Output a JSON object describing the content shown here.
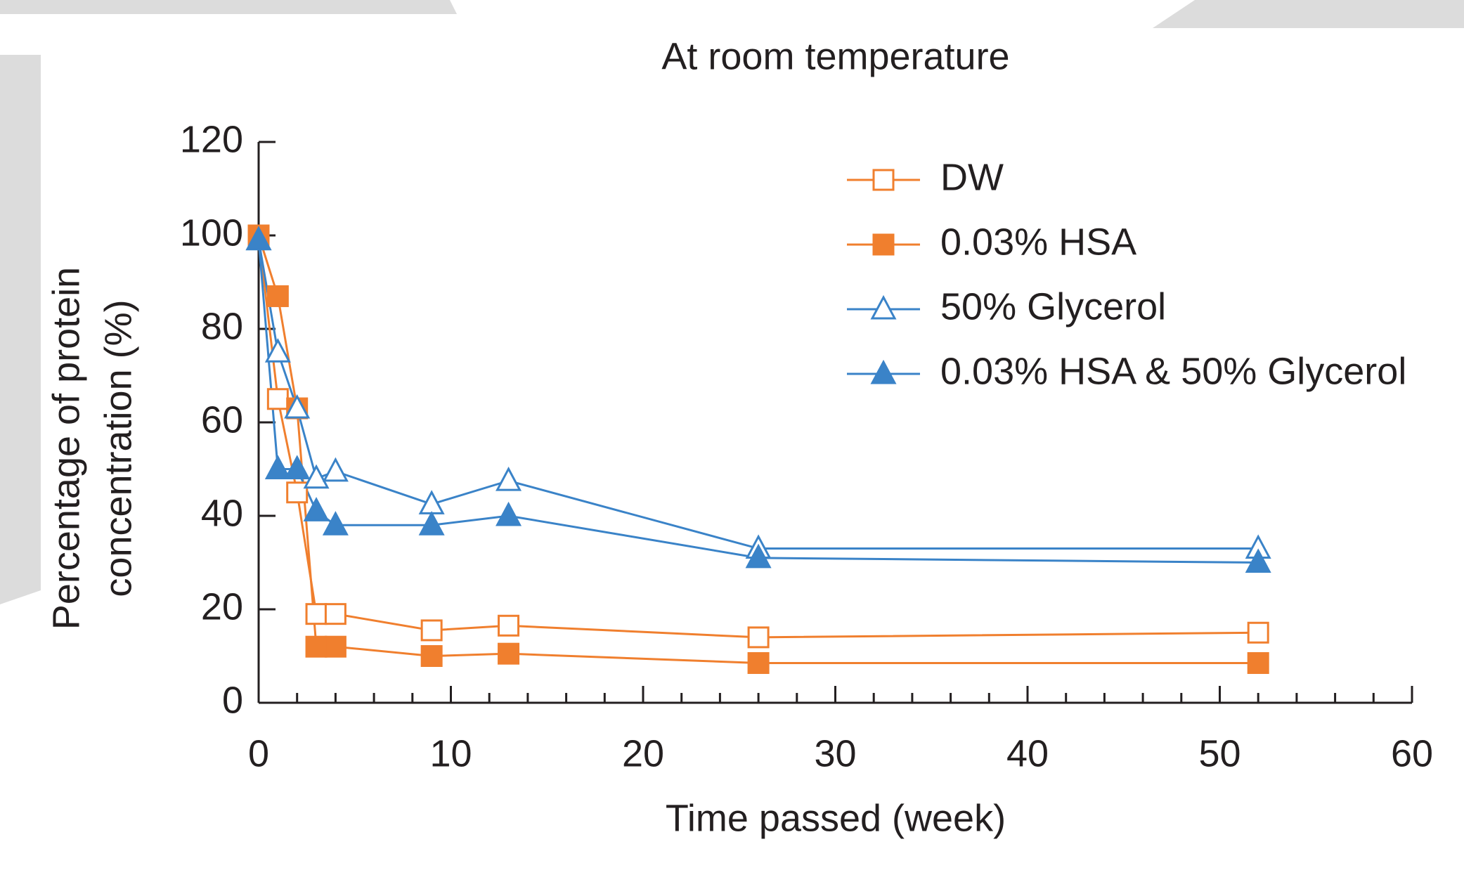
{
  "chart_data": {
    "type": "line",
    "title": "At room temperature",
    "x_label": "Time passed (week)",
    "y_label": [
      "Percentage of protein",
      "concentration (%)"
    ],
    "x": [
      0,
      1,
      2,
      3,
      4,
      9,
      13,
      26,
      52
    ],
    "series": [
      {
        "name": "DW",
        "color": "#f07f2e",
        "marker": "square",
        "filled": false,
        "values": [
          100,
          65,
          45,
          19,
          19,
          15.5,
          16.5,
          14,
          15
        ]
      },
      {
        "name": "0.03% HSA",
        "color": "#f07f2e",
        "marker": "square",
        "filled": true,
        "values": [
          100,
          87,
          63,
          12,
          12,
          10,
          10.5,
          8.5,
          8.5
        ]
      },
      {
        "name": "50% Glycerol",
        "color": "#3a83c8",
        "marker": "triangle",
        "filled": false,
        "values": [
          99,
          75,
          63,
          48,
          49.5,
          42.5,
          47.5,
          33,
          33
        ]
      },
      {
        "name": "0.03% HSA & 50% Glycerol",
        "color": "#3a83c8",
        "marker": "triangle",
        "filled": true,
        "values": [
          99,
          50,
          50,
          41,
          38,
          38,
          40,
          31,
          30
        ]
      }
    ],
    "xlim": [
      0,
      60
    ],
    "xticks": [
      0,
      10,
      20,
      30,
      40,
      50,
      60
    ],
    "xminorticks": [
      2,
      4,
      6,
      8,
      12,
      14,
      16,
      18,
      22,
      24,
      26,
      28,
      32,
      34,
      36,
      38,
      42,
      44,
      46,
      48,
      52,
      54,
      56,
      58
    ],
    "ylim": [
      0,
      120
    ],
    "yticks": [
      0,
      20,
      40,
      60,
      80,
      100,
      120
    ],
    "grid": false,
    "legend": "upper right"
  }
}
